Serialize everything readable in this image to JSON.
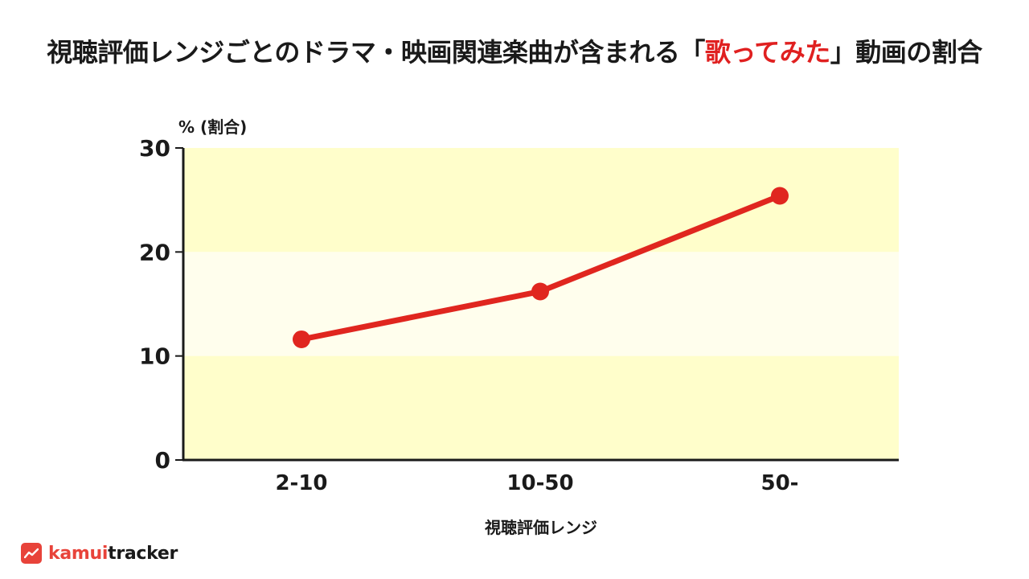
{
  "title": {
    "before": "視聴評価レンジごとのドラマ・映画関連楽曲が含まれる「",
    "highlight": "歌ってみた",
    "after": "」動画の割合"
  },
  "colors": {
    "accent": "#e02020",
    "band_outer": "#fffecb",
    "band_inner": "#fffeed",
    "line": "#e0261f"
  },
  "logo": {
    "icon": "trend-chart-icon",
    "prefix": "kamui",
    "suffix": "tracker"
  },
  "chart_data": {
    "type": "line",
    "title": "視聴評価レンジごとのドラマ・映画関連楽曲が含まれる「歌ってみた」動画の割合",
    "ylabel": "% (割合)",
    "xlabel": "視聴評価レンジ",
    "categories": [
      "2-10",
      "10-50",
      "50-"
    ],
    "series": [
      {
        "values": [
          11.6,
          16.2,
          25.4
        ]
      }
    ],
    "ylim": [
      0,
      30
    ],
    "yticks": [
      "0",
      "10",
      "20",
      "30"
    ],
    "grid": false
  }
}
